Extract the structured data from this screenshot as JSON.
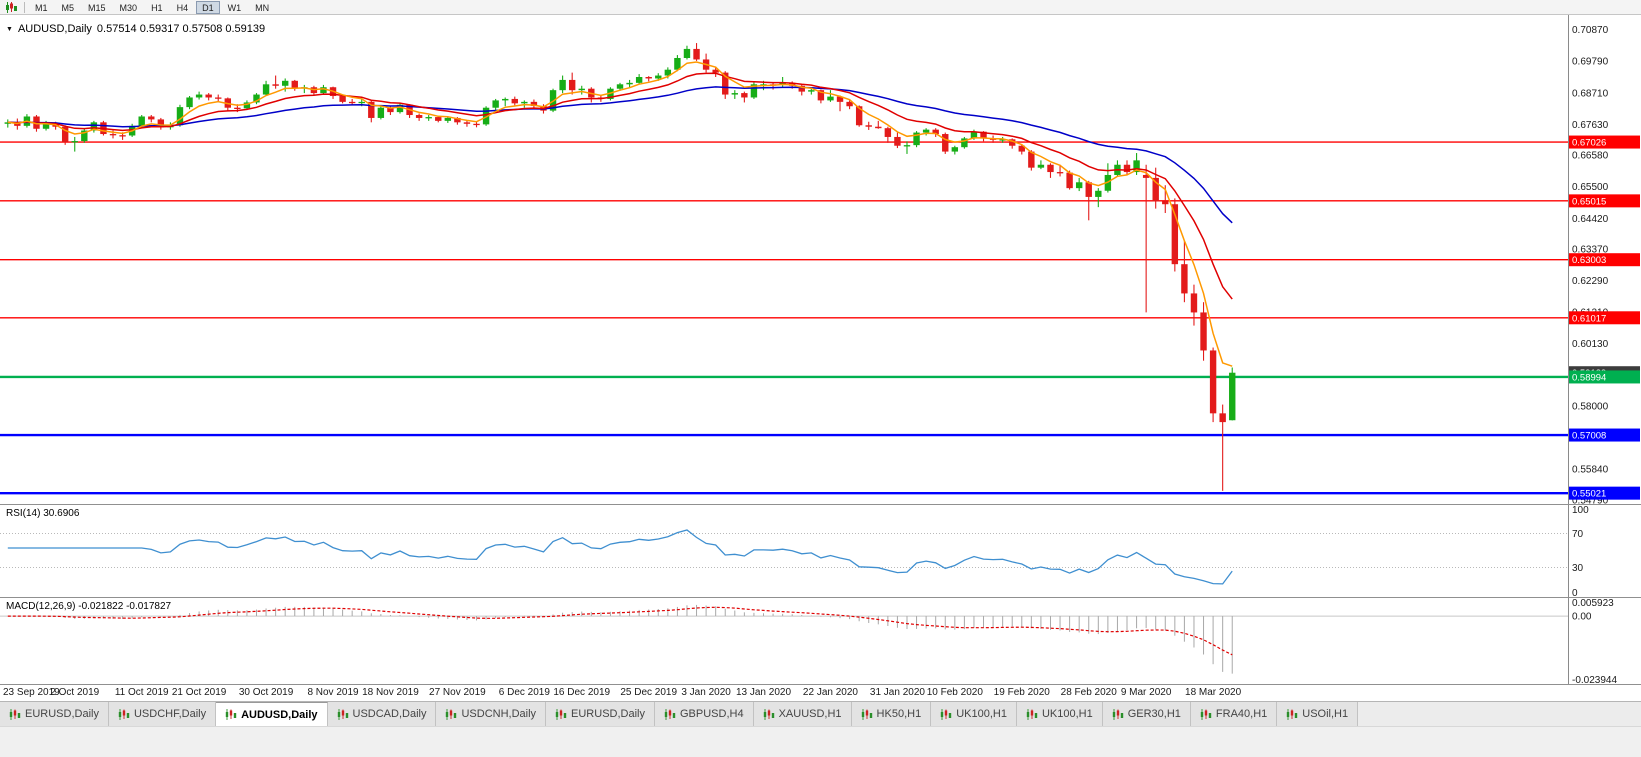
{
  "toolbar": {
    "timeframes": [
      "M1",
      "M5",
      "M15",
      "M30",
      "H1",
      "H4",
      "D1",
      "W1",
      "MN"
    ],
    "active_timeframe": "D1"
  },
  "main_chart": {
    "title": "AUDUSD,Daily",
    "ohlc_text": "0.57514 0.59317 0.57508 0.59139"
  },
  "chart_data": {
    "type": "candlestick",
    "symbol": "AUDUSD",
    "timeframe": "Daily",
    "current_ohlc": {
      "open": 0.57514,
      "high": 0.59317,
      "low": 0.57508,
      "close": 0.59139
    },
    "price_range": [
      0.5465,
      0.7137
    ],
    "bars_area_fraction": 0.787,
    "up_color": "#17ad17",
    "down_color": "#e31b1b",
    "y_ticks": [
      "0.70870",
      "0.69790",
      "0.68710",
      "0.67630",
      "0.66580",
      "0.65500",
      "0.64420",
      "0.63370",
      "0.62290",
      "0.61210",
      "0.60130",
      "0.59050",
      "0.58000",
      "0.56920",
      "0.55840",
      "0.54790"
    ],
    "current_price": {
      "value": 0.59139,
      "label": "0.59139",
      "bg": "#3c3c3c"
    },
    "horizontal_lines": [
      {
        "price": 0.67026,
        "label": "0.67026",
        "color": "#ff0000",
        "width": 1.4
      },
      {
        "price": 0.65015,
        "label": "0.65015",
        "color": "#ff0000",
        "width": 1.4
      },
      {
        "price": 0.63003,
        "label": "0.63003",
        "color": "#ff0000",
        "width": 1.4
      },
      {
        "price": 0.61017,
        "label": "0.61017",
        "color": "#ff0000",
        "width": 1.4
      },
      {
        "price": 0.58994,
        "label": "0.58994",
        "color": "#00b050",
        "width": 2.4
      },
      {
        "price": 0.57008,
        "label": "0.57008",
        "color": "#0000ff",
        "width": 2.4
      },
      {
        "price": 0.55021,
        "label": "0.55021",
        "color": "#0000ff",
        "width": 2.4
      }
    ],
    "moving_averages": [
      {
        "name": "fast",
        "period": 5,
        "color": "#ff9900"
      },
      {
        "name": "medium",
        "period": 13,
        "color": "#e00000"
      },
      {
        "name": "slow",
        "period": 34,
        "color": "#0000c8"
      }
    ],
    "x_labels": [
      {
        "text": "23 Sep 2019",
        "bar": 0
      },
      {
        "text": "2 Oct 2019",
        "bar": 7
      },
      {
        "text": "11 Oct 2019",
        "bar": 14
      },
      {
        "text": "21 Oct 2019",
        "bar": 20
      },
      {
        "text": "30 Oct 2019",
        "bar": 27
      },
      {
        "text": "8 Nov 2019",
        "bar": 34
      },
      {
        "text": "18 Nov 2019",
        "bar": 40
      },
      {
        "text": "27 Nov 2019",
        "bar": 47
      },
      {
        "text": "6 Dec 2019",
        "bar": 54
      },
      {
        "text": "16 Dec 2019",
        "bar": 60
      },
      {
        "text": "25 Dec 2019",
        "bar": 67
      },
      {
        "text": "3 Jan 2020",
        "bar": 73
      },
      {
        "text": "13 Jan 2020",
        "bar": 79
      },
      {
        "text": "22 Jan 2020",
        "bar": 86
      },
      {
        "text": "31 Jan 2020",
        "bar": 93
      },
      {
        "text": "10 Feb 2020",
        "bar": 99
      },
      {
        "text": "19 Feb 2020",
        "bar": 106
      },
      {
        "text": "28 Feb 2020",
        "bar": 113
      },
      {
        "text": "9 Mar 2020",
        "bar": 119
      },
      {
        "text": "18 Mar 2020",
        "bar": 126
      }
    ],
    "candles": [
      [
        0.6765,
        0.678,
        0.6752,
        0.677
      ],
      [
        0.677,
        0.6783,
        0.6745,
        0.6758
      ],
      [
        0.6758,
        0.6798,
        0.6752,
        0.679
      ],
      [
        0.679,
        0.6795,
        0.6738,
        0.6748
      ],
      [
        0.6748,
        0.6775,
        0.6742,
        0.6765
      ],
      [
        0.6765,
        0.6772,
        0.6745,
        0.6755
      ],
      [
        0.6755,
        0.676,
        0.6693,
        0.6703
      ],
      [
        0.6703,
        0.672,
        0.667,
        0.6706
      ],
      [
        0.6706,
        0.675,
        0.67,
        0.6742
      ],
      [
        0.6742,
        0.6775,
        0.6735,
        0.677
      ],
      [
        0.677,
        0.6775,
        0.6725,
        0.673
      ],
      [
        0.673,
        0.6742,
        0.6715,
        0.6726
      ],
      [
        0.6726,
        0.6736,
        0.671,
        0.6725
      ],
      [
        0.6725,
        0.6765,
        0.672,
        0.6758
      ],
      [
        0.6758,
        0.6795,
        0.6752,
        0.679
      ],
      [
        0.679,
        0.6795,
        0.677,
        0.678
      ],
      [
        0.678,
        0.6785,
        0.6745,
        0.6753
      ],
      [
        0.6753,
        0.677,
        0.6745,
        0.676
      ],
      [
        0.676,
        0.683,
        0.6755,
        0.6822
      ],
      [
        0.6822,
        0.686,
        0.6815,
        0.6855
      ],
      [
        0.6855,
        0.6875,
        0.6848,
        0.6865
      ],
      [
        0.6865,
        0.687,
        0.6845,
        0.6855
      ],
      [
        0.6855,
        0.6865,
        0.6838,
        0.6852
      ],
      [
        0.6852,
        0.6855,
        0.681,
        0.682
      ],
      [
        0.682,
        0.6832,
        0.6805,
        0.6818
      ],
      [
        0.6818,
        0.6845,
        0.6812,
        0.6838
      ],
      [
        0.6838,
        0.687,
        0.6832,
        0.6865
      ],
      [
        0.6865,
        0.6912,
        0.686,
        0.69
      ],
      [
        0.69,
        0.693,
        0.6885,
        0.6895
      ],
      [
        0.6895,
        0.692,
        0.6875,
        0.6912
      ],
      [
        0.6912,
        0.6915,
        0.6878,
        0.6888
      ],
      [
        0.6888,
        0.6898,
        0.687,
        0.689
      ],
      [
        0.689,
        0.6895,
        0.6862,
        0.687
      ],
      [
        0.687,
        0.6898,
        0.6865,
        0.689
      ],
      [
        0.689,
        0.6892,
        0.685,
        0.686
      ],
      [
        0.686,
        0.6865,
        0.6835,
        0.684
      ],
      [
        0.684,
        0.685,
        0.683,
        0.6838
      ],
      [
        0.6838,
        0.6852,
        0.6825,
        0.684
      ],
      [
        0.684,
        0.6845,
        0.677,
        0.6785
      ],
      [
        0.6785,
        0.6825,
        0.678,
        0.682
      ],
      [
        0.682,
        0.6825,
        0.6795,
        0.6805
      ],
      [
        0.6805,
        0.6835,
        0.68,
        0.683
      ],
      [
        0.683,
        0.6832,
        0.6785,
        0.6795
      ],
      [
        0.6795,
        0.68,
        0.6775,
        0.6785
      ],
      [
        0.6785,
        0.6795,
        0.6775,
        0.6788
      ],
      [
        0.6788,
        0.679,
        0.677,
        0.6775
      ],
      [
        0.6775,
        0.679,
        0.6768,
        0.6785
      ],
      [
        0.6785,
        0.6788,
        0.6762,
        0.677
      ],
      [
        0.677,
        0.6775,
        0.6755,
        0.6765
      ],
      [
        0.6765,
        0.6772,
        0.6753,
        0.6763
      ],
      [
        0.6763,
        0.6825,
        0.6758,
        0.682
      ],
      [
        0.682,
        0.685,
        0.681,
        0.6845
      ],
      [
        0.6845,
        0.6855,
        0.6825,
        0.685
      ],
      [
        0.685,
        0.6858,
        0.6828,
        0.6835
      ],
      [
        0.6835,
        0.6845,
        0.682,
        0.684
      ],
      [
        0.684,
        0.6848,
        0.6818,
        0.6826
      ],
      [
        0.6826,
        0.6832,
        0.68,
        0.681
      ],
      [
        0.681,
        0.6885,
        0.6805,
        0.688
      ],
      [
        0.688,
        0.693,
        0.687,
        0.6915
      ],
      [
        0.6915,
        0.694,
        0.6865,
        0.688
      ],
      [
        0.688,
        0.6895,
        0.6865,
        0.6885
      ],
      [
        0.6885,
        0.689,
        0.6838,
        0.6855
      ],
      [
        0.6855,
        0.6862,
        0.684,
        0.685
      ],
      [
        0.685,
        0.689,
        0.6845,
        0.6885
      ],
      [
        0.6885,
        0.6905,
        0.6878,
        0.69
      ],
      [
        0.69,
        0.6915,
        0.689,
        0.6905
      ],
      [
        0.6905,
        0.6935,
        0.69,
        0.6925
      ],
      [
        0.6925,
        0.6928,
        0.691,
        0.692
      ],
      [
        0.692,
        0.6938,
        0.6912,
        0.693
      ],
      [
        0.693,
        0.6958,
        0.692,
        0.695
      ],
      [
        0.695,
        0.7,
        0.6945,
        0.699
      ],
      [
        0.699,
        0.7032,
        0.6985,
        0.7021
      ],
      [
        0.7021,
        0.7041,
        0.698,
        0.6985
      ],
      [
        0.6985,
        0.7005,
        0.694,
        0.695
      ],
      [
        0.695,
        0.696,
        0.6925,
        0.694
      ],
      [
        0.694,
        0.6945,
        0.685,
        0.6865
      ],
      [
        0.6865,
        0.688,
        0.685,
        0.687
      ],
      [
        0.687,
        0.6875,
        0.6838,
        0.6855
      ],
      [
        0.6855,
        0.691,
        0.685,
        0.69
      ],
      [
        0.69,
        0.6912,
        0.688,
        0.69
      ],
      [
        0.69,
        0.6905,
        0.6882,
        0.6898
      ],
      [
        0.6898,
        0.6925,
        0.689,
        0.6905
      ],
      [
        0.6905,
        0.691,
        0.6885,
        0.6895
      ],
      [
        0.6895,
        0.69,
        0.6862,
        0.6875
      ],
      [
        0.6875,
        0.6885,
        0.6865,
        0.688
      ],
      [
        0.688,
        0.6882,
        0.6835,
        0.6845
      ],
      [
        0.6845,
        0.688,
        0.684,
        0.6858
      ],
      [
        0.6858,
        0.6862,
        0.6808,
        0.684
      ],
      [
        0.684,
        0.6845,
        0.6815,
        0.6825
      ],
      [
        0.6825,
        0.6828,
        0.6755,
        0.676
      ],
      [
        0.676,
        0.6772,
        0.6744,
        0.6755
      ],
      [
        0.6755,
        0.6775,
        0.6748,
        0.675
      ],
      [
        0.675,
        0.6755,
        0.67,
        0.672
      ],
      [
        0.672,
        0.6735,
        0.6682,
        0.669
      ],
      [
        0.669,
        0.6705,
        0.6662,
        0.6692
      ],
      [
        0.6692,
        0.674,
        0.6685,
        0.6735
      ],
      [
        0.6735,
        0.675,
        0.6725,
        0.6745
      ],
      [
        0.6745,
        0.675,
        0.672,
        0.673
      ],
      [
        0.673,
        0.6735,
        0.6662,
        0.667
      ],
      [
        0.667,
        0.669,
        0.666,
        0.6685
      ],
      [
        0.6685,
        0.672,
        0.668,
        0.6715
      ],
      [
        0.6715,
        0.6745,
        0.671,
        0.6738
      ],
      [
        0.6738,
        0.674,
        0.6705,
        0.6715
      ],
      [
        0.6715,
        0.6725,
        0.67,
        0.671
      ],
      [
        0.671,
        0.672,
        0.67,
        0.6712
      ],
      [
        0.6712,
        0.6715,
        0.668,
        0.669
      ],
      [
        0.669,
        0.6695,
        0.666,
        0.667
      ],
      [
        0.667,
        0.6675,
        0.6605,
        0.6615
      ],
      [
        0.6615,
        0.664,
        0.661,
        0.6625
      ],
      [
        0.6625,
        0.663,
        0.658,
        0.66
      ],
      [
        0.66,
        0.6625,
        0.6585,
        0.6598
      ],
      [
        0.6598,
        0.6605,
        0.654,
        0.6545
      ],
      [
        0.6545,
        0.658,
        0.6535,
        0.6565
      ],
      [
        0.6565,
        0.657,
        0.6435,
        0.6515
      ],
      [
        0.6515,
        0.6545,
        0.648,
        0.6536
      ],
      [
        0.6536,
        0.663,
        0.653,
        0.659
      ],
      [
        0.659,
        0.664,
        0.6585,
        0.6625
      ],
      [
        0.6625,
        0.664,
        0.659,
        0.66
      ],
      [
        0.66,
        0.6665,
        0.659,
        0.664
      ],
      [
        0.659,
        0.6625,
        0.612,
        0.658
      ],
      [
        0.658,
        0.6615,
        0.6475,
        0.65
      ],
      [
        0.65,
        0.6555,
        0.646,
        0.649
      ],
      [
        0.649,
        0.651,
        0.626,
        0.6285
      ],
      [
        0.6285,
        0.6365,
        0.6155,
        0.6185
      ],
      [
        0.6185,
        0.6215,
        0.6075,
        0.612
      ],
      [
        0.612,
        0.6155,
        0.5955,
        0.599
      ],
      [
        0.599,
        0.6,
        0.5745,
        0.5775
      ],
      [
        0.5775,
        0.5805,
        0.551,
        0.5745
      ],
      [
        0.57514,
        0.59317,
        0.57508,
        0.59139
      ]
    ],
    "indicators": {
      "rsi": {
        "label": "RSI(14) 30.6906",
        "period": 14,
        "value": 30.6906,
        "levels": [
          100,
          70,
          30,
          0
        ],
        "color": "#3f8fd0",
        "range": [
          0,
          100
        ]
      },
      "macd": {
        "label": "MACD(12,26,9) -0.021822 -0.017827",
        "fast": 12,
        "slow": 26,
        "signal": 9,
        "macd_value": -0.021822,
        "signal_value": -0.017827,
        "y_ticks": [
          {
            "value": 0.005923,
            "label": "0.005923"
          },
          {
            "value": 0,
            "label": "0.00"
          },
          {
            "value": -0.023944,
            "label": "-0.023944"
          }
        ],
        "range": [
          -0.023944,
          0.005923
        ],
        "histogram_color": "#a8a8a8",
        "signal_color": "#e00000"
      }
    }
  },
  "tabs": [
    "EURUSD,Daily",
    "USDCHF,Daily",
    "AUDUSD,Daily",
    "USDCAD,Daily",
    "USDCNH,Daily",
    "EURUSD,Daily",
    "GBPUSD,H4",
    "XAUUSD,H1",
    "HK50,H1",
    "UK100,H1",
    "UK100,H1",
    "GER30,H1",
    "FRA40,H1",
    "USOil,H1"
  ],
  "active_tab_index": 2
}
